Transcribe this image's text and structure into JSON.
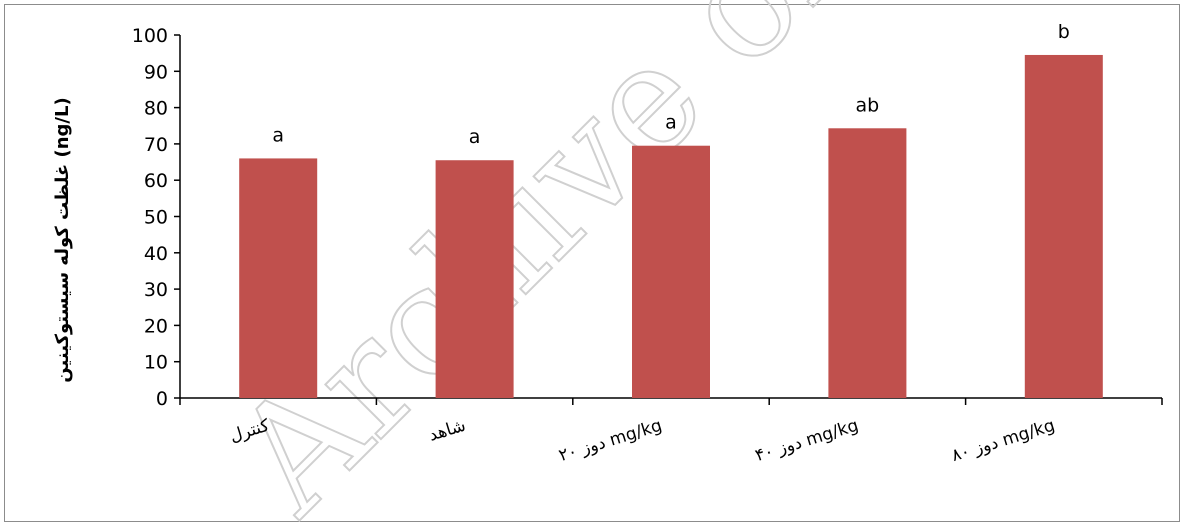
{
  "chart_data": {
    "type": "bar",
    "categories": [
      "کنترل",
      "شاهد",
      "دوز ۲۰ mg/kg",
      "دوز ۴۰ mg/kg",
      "دوز ۸۰ mg/kg"
    ],
    "values": [
      66,
      65.5,
      69.5,
      74.3,
      94.5
    ],
    "data_labels": [
      "a",
      "a",
      "a",
      "ab",
      "b"
    ],
    "ylabel": "غلظت کوله سیستوکینین (ng/L)",
    "ylim": [
      0,
      100
    ],
    "yticks": [
      0,
      10,
      20,
      30,
      40,
      50,
      60,
      70,
      80,
      90,
      100
    ],
    "grid": false,
    "bar_color": "#c0504d"
  },
  "watermark": "Archive of SID"
}
